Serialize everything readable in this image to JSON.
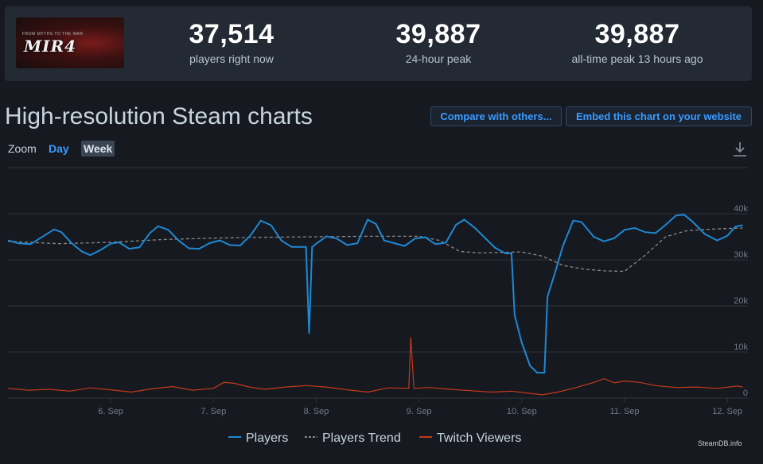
{
  "header": {
    "game_logo_text": "MIR4",
    "game_logo_subtext": "FROM MYTHS TO THE WAR",
    "stats": [
      {
        "value": "37,514",
        "label": "players right now"
      },
      {
        "value": "39,887",
        "label": "24-hour peak"
      },
      {
        "value": "39,887",
        "label": "all-time peak 13 hours ago"
      }
    ]
  },
  "section": {
    "title": "High-resolution Steam charts",
    "compare_label": "Compare with others...",
    "embed_label": "Embed this chart on your website"
  },
  "zoom": {
    "label": "Zoom",
    "options": [
      "Day",
      "Week"
    ],
    "selected": "Week"
  },
  "legend": {
    "players": "Players",
    "trend": "Players Trend",
    "twitch": "Twitch Viewers"
  },
  "credit": "SteamDB.info",
  "colors": {
    "players": "#1e88d4",
    "trend": "#888888",
    "twitch": "#c43a1a",
    "grid": "#2f353d",
    "axis_text": "#707a85"
  },
  "chart_data": {
    "type": "line",
    "xlim": [
      5.0,
      12.2
    ],
    "ylim": [
      0,
      40000
    ],
    "x_ticks": [
      {
        "x": 6,
        "label": "6. Sep"
      },
      {
        "x": 7,
        "label": "7. Sep"
      },
      {
        "x": 8,
        "label": "8. Sep"
      },
      {
        "x": 9,
        "label": "9. Sep"
      },
      {
        "x": 10,
        "label": "10. Sep"
      },
      {
        "x": 11,
        "label": "11. Sep"
      },
      {
        "x": 12,
        "label": "12. Sep"
      }
    ],
    "y_ticks": [
      {
        "y": 0,
        "label": "0"
      },
      {
        "y": 10000,
        "label": "10k"
      },
      {
        "y": 20000,
        "label": "20k"
      },
      {
        "y": 30000,
        "label": "30k"
      },
      {
        "y": 40000,
        "label": "40k"
      }
    ],
    "grid": true,
    "legend_position": "bottom",
    "series": [
      {
        "name": "Players",
        "points": [
          [
            5.0,
            34200
          ],
          [
            5.1,
            33600
          ],
          [
            5.22,
            33400
          ],
          [
            5.35,
            35200
          ],
          [
            5.45,
            36600
          ],
          [
            5.52,
            36000
          ],
          [
            5.62,
            33600
          ],
          [
            5.72,
            31800
          ],
          [
            5.8,
            31000
          ],
          [
            5.9,
            32100
          ],
          [
            6.0,
            33500
          ],
          [
            6.08,
            33800
          ],
          [
            6.18,
            32400
          ],
          [
            6.28,
            32700
          ],
          [
            6.38,
            35800
          ],
          [
            6.46,
            37300
          ],
          [
            6.56,
            36500
          ],
          [
            6.66,
            34200
          ],
          [
            6.76,
            32500
          ],
          [
            6.86,
            32400
          ],
          [
            6.96,
            33600
          ],
          [
            7.06,
            34200
          ],
          [
            7.16,
            33200
          ],
          [
            7.26,
            33100
          ],
          [
            7.36,
            35300
          ],
          [
            7.46,
            38500
          ],
          [
            7.56,
            37500
          ],
          [
            7.66,
            34200
          ],
          [
            7.76,
            32800
          ],
          [
            7.9,
            32800
          ],
          [
            7.93,
            14000
          ],
          [
            7.96,
            32800
          ],
          [
            8.0,
            33500
          ],
          [
            8.1,
            35100
          ],
          [
            8.2,
            34600
          ],
          [
            8.3,
            33200
          ],
          [
            8.4,
            33600
          ],
          [
            8.5,
            38700
          ],
          [
            8.58,
            37800
          ],
          [
            8.66,
            34200
          ],
          [
            8.76,
            33600
          ],
          [
            8.86,
            33000
          ],
          [
            8.96,
            34600
          ],
          [
            9.06,
            34900
          ],
          [
            9.16,
            33400
          ],
          [
            9.26,
            33700
          ],
          [
            9.36,
            37600
          ],
          [
            9.44,
            38700
          ],
          [
            9.54,
            37000
          ],
          [
            9.64,
            34800
          ],
          [
            9.74,
            32600
          ],
          [
            9.84,
            31400
          ],
          [
            9.9,
            31400
          ],
          [
            9.93,
            18000
          ],
          [
            10.0,
            12000
          ],
          [
            10.08,
            7000
          ],
          [
            10.15,
            5500
          ],
          [
            10.22,
            5500
          ],
          [
            10.25,
            22000
          ],
          [
            10.32,
            27000
          ],
          [
            10.4,
            33000
          ],
          [
            10.5,
            38500
          ],
          [
            10.58,
            38200
          ],
          [
            10.7,
            35000
          ],
          [
            10.8,
            34000
          ],
          [
            10.9,
            34700
          ],
          [
            11.0,
            36500
          ],
          [
            11.1,
            36900
          ],
          [
            11.2,
            36000
          ],
          [
            11.3,
            35800
          ],
          [
            11.4,
            37600
          ],
          [
            11.5,
            39600
          ],
          [
            11.58,
            39800
          ],
          [
            11.66,
            38300
          ],
          [
            11.78,
            35600
          ],
          [
            11.9,
            34200
          ],
          [
            12.0,
            35200
          ],
          [
            12.08,
            37200
          ],
          [
            12.15,
            37500
          ]
        ]
      },
      {
        "name": "Players Trend",
        "points": [
          [
            5.0,
            34000
          ],
          [
            5.5,
            33500
          ],
          [
            6.0,
            33800
          ],
          [
            6.5,
            34400
          ],
          [
            7.0,
            34700
          ],
          [
            7.5,
            34900
          ],
          [
            8.0,
            35000
          ],
          [
            8.5,
            35100
          ],
          [
            9.0,
            35100
          ],
          [
            9.2,
            34200
          ],
          [
            9.4,
            31800
          ],
          [
            9.6,
            31500
          ],
          [
            10.0,
            31700
          ],
          [
            10.2,
            30800
          ],
          [
            10.4,
            28800
          ],
          [
            10.6,
            28000
          ],
          [
            10.8,
            27600
          ],
          [
            11.0,
            27500
          ],
          [
            11.2,
            31000
          ],
          [
            11.4,
            35000
          ],
          [
            11.6,
            36300
          ],
          [
            11.8,
            36600
          ],
          [
            12.0,
            36800
          ],
          [
            12.15,
            36900
          ]
        ]
      },
      {
        "name": "Twitch Viewers",
        "points": [
          [
            5.0,
            2100
          ],
          [
            5.2,
            1700
          ],
          [
            5.4,
            1900
          ],
          [
            5.6,
            1500
          ],
          [
            5.8,
            2200
          ],
          [
            6.0,
            1800
          ],
          [
            6.2,
            1300
          ],
          [
            6.4,
            2000
          ],
          [
            6.6,
            2500
          ],
          [
            6.8,
            1700
          ],
          [
            7.0,
            2100
          ],
          [
            7.1,
            3400
          ],
          [
            7.2,
            3200
          ],
          [
            7.35,
            2400
          ],
          [
            7.5,
            1900
          ],
          [
            7.7,
            2400
          ],
          [
            7.9,
            2700
          ],
          [
            8.1,
            2400
          ],
          [
            8.3,
            1800
          ],
          [
            8.5,
            1300
          ],
          [
            8.7,
            2200
          ],
          [
            8.9,
            2100
          ],
          [
            8.92,
            13200
          ],
          [
            8.95,
            2100
          ],
          [
            9.1,
            2300
          ],
          [
            9.3,
            1900
          ],
          [
            9.5,
            1600
          ],
          [
            9.7,
            1300
          ],
          [
            9.9,
            1500
          ],
          [
            10.05,
            1100
          ],
          [
            10.2,
            700
          ],
          [
            10.35,
            1300
          ],
          [
            10.5,
            2100
          ],
          [
            10.7,
            3400
          ],
          [
            10.8,
            4200
          ],
          [
            10.9,
            3300
          ],
          [
            11.0,
            3700
          ],
          [
            11.15,
            3400
          ],
          [
            11.3,
            2700
          ],
          [
            11.5,
            2300
          ],
          [
            11.7,
            2400
          ],
          [
            11.9,
            2100
          ],
          [
            12.1,
            2600
          ],
          [
            12.15,
            2400
          ]
        ]
      }
    ]
  }
}
